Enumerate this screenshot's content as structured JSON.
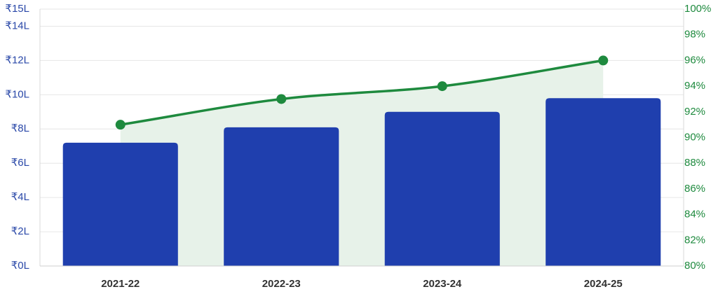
{
  "chart_data": {
    "type": "bar",
    "categories": [
      "2021-22",
      "2022-23",
      "2023-24",
      "2024-25"
    ],
    "series": [
      {
        "type": "bar",
        "axis": "left",
        "values": [
          7.2,
          8.1,
          9.0,
          9.8
        ],
        "color": "#1f3fae"
      },
      {
        "type": "line",
        "axis": "right",
        "values": [
          91,
          93,
          94,
          96
        ],
        "color": "#1e8a3e",
        "fill": "#e7f2e9"
      }
    ],
    "y_left": {
      "ylim": [
        0,
        15
      ],
      "ticks": [
        0,
        2,
        4,
        6,
        8,
        10,
        12,
        14,
        15
      ],
      "tick_labels": [
        "₹0L",
        "₹2L",
        "₹4L",
        "₹6L",
        "₹8L",
        "₹10L",
        "₹12L",
        "₹14L",
        "₹15L"
      ],
      "color": "#2a48a8"
    },
    "y_right": {
      "ylim": [
        80,
        100
      ],
      "ticks": [
        80,
        82,
        84,
        86,
        88,
        90,
        92,
        94,
        96,
        98,
        100
      ],
      "tick_labels": [
        "80%",
        "82%",
        "84%",
        "86%",
        "88%",
        "90%",
        "92%",
        "94%",
        "96%",
        "98%",
        "100%"
      ],
      "color": "#1e8a3e"
    },
    "grid": true,
    "legend": "none",
    "title": "",
    "xlabel": "",
    "ylabel": ""
  }
}
